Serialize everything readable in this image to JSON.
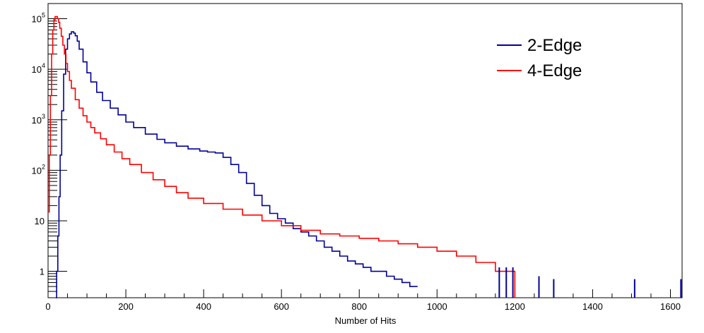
{
  "chart_data": {
    "type": "line",
    "title": "",
    "xlabel": "Number of Hits",
    "ylabel": "",
    "xlim": [
      0,
      1630
    ],
    "ylim": [
      0.3,
      200000
    ],
    "y_scale": "log",
    "grid": false,
    "legend_position": "top-right",
    "x_ticks": [
      0,
      200,
      400,
      600,
      800,
      1000,
      1200,
      1400,
      1600
    ],
    "x_tick_labels": [
      "0",
      "200",
      "400",
      "600",
      "800",
      "1000",
      "1200",
      "1400",
      "1600"
    ],
    "y_ticks": [
      1,
      10,
      100,
      1000,
      10000,
      100000
    ],
    "y_tick_labels": [
      {
        "base": "1",
        "exp": ""
      },
      {
        "base": "10",
        "exp": ""
      },
      {
        "base": "10",
        "exp": "2"
      },
      {
        "base": "10",
        "exp": "3"
      },
      {
        "base": "10",
        "exp": "4"
      },
      {
        "base": "10",
        "exp": "5"
      }
    ],
    "series": [
      {
        "name": "2-Edge",
        "color": "#000099",
        "x": [
          20,
          22,
          25,
          28,
          31,
          35,
          40,
          45,
          50,
          55,
          60,
          63,
          66,
          70,
          75,
          80,
          90,
          100,
          110,
          125,
          140,
          160,
          180,
          200,
          220,
          250,
          280,
          300,
          330,
          360,
          390,
          410,
          430,
          450,
          470,
          490,
          510,
          530,
          550,
          570,
          590,
          610,
          630,
          650,
          670,
          690,
          710,
          730,
          750,
          770,
          790,
          810,
          830,
          850,
          870,
          890,
          910,
          930,
          950
        ],
        "values": [
          0.3,
          1,
          5,
          30,
          200,
          1500,
          8000,
          25000,
          40000,
          50000,
          55000,
          55000,
          52000,
          46000,
          36000,
          25000,
          14000,
          8500,
          5600,
          3500,
          2400,
          1700,
          1250,
          900,
          700,
          520,
          410,
          350,
          300,
          265,
          240,
          230,
          220,
          180,
          130,
          90,
          55,
          32,
          20,
          14,
          11,
          9,
          7,
          6,
          5,
          4,
          3,
          2.5,
          2,
          1.6,
          1.4,
          1.2,
          1,
          1,
          0.8,
          0.7,
          0.6,
          0.5,
          0.5
        ]
      },
      {
        "name": "4-Edge",
        "color": "#ff0000",
        "x": [
          0,
          3,
          6,
          9,
          12,
          15,
          18,
          21,
          24,
          27,
          30,
          34,
          38,
          42,
          46,
          50,
          55,
          60,
          70,
          80,
          90,
          100,
          110,
          120,
          135,
          150,
          170,
          190,
          210,
          240,
          270,
          300,
          330,
          360,
          400,
          450,
          500,
          550,
          600,
          650,
          700,
          750,
          800,
          850,
          900,
          950,
          1000,
          1050,
          1100,
          1150,
          1200
        ],
        "values": [
          15,
          200,
          3000,
          20000,
          60000,
          95000,
          110000,
          110000,
          100000,
          85000,
          65000,
          45000,
          30000,
          20000,
          13000,
          9000,
          6000,
          4200,
          2500,
          1700,
          1200,
          900,
          700,
          550,
          420,
          320,
          230,
          170,
          130,
          90,
          65,
          48,
          36,
          28,
          22,
          17,
          13,
          10,
          8,
          6.5,
          5.5,
          5,
          4.5,
          4,
          3.5,
          3,
          2.5,
          2,
          1.5,
          1,
          0.3
        ]
      }
    ],
    "series_extra": [
      {
        "name": "",
        "x": [
          1160,
          1178,
          1195,
          1262,
          1300,
          1508,
          1627
        ],
        "values": [
          1.2,
          1.2,
          1.2,
          0.8,
          0.7,
          0.7,
          0.7
        ]
      }
    ]
  }
}
